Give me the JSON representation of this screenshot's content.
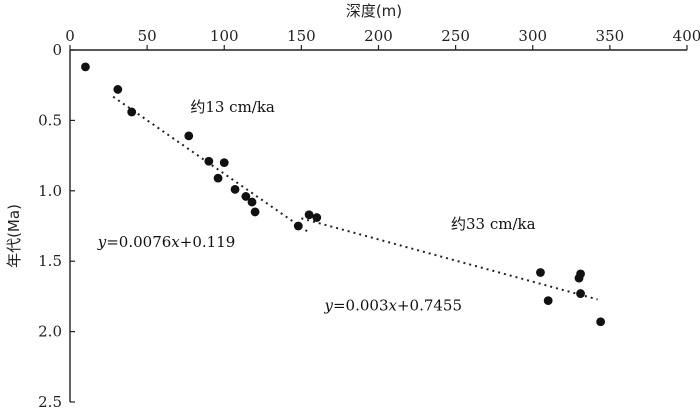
{
  "chart_data": {
    "type": "scatter",
    "title": "",
    "xlabel": "深度(m)",
    "ylabel": "年代(Ma)",
    "xlim": [
      0,
      400
    ],
    "ylim": [
      0,
      2.5
    ],
    "x_axis_position": "top",
    "y_inverted": true,
    "grid": false,
    "x_ticks": [
      {
        "v": 0,
        "label": "0"
      },
      {
        "v": 50,
        "label": "50"
      },
      {
        "v": 100,
        "label": "100"
      },
      {
        "v": 150,
        "label": "150"
      },
      {
        "v": 200,
        "label": "200"
      },
      {
        "v": 250,
        "label": "250"
      },
      {
        "v": 300,
        "label": "300"
      },
      {
        "v": 350,
        "label": "350"
      },
      {
        "v": 400,
        "label": "400"
      }
    ],
    "y_ticks": [
      {
        "v": 0,
        "label": "0"
      },
      {
        "v": 0.5,
        "label": "0.5"
      },
      {
        "v": 1.0,
        "label": "1.0"
      },
      {
        "v": 1.5,
        "label": "1.5"
      },
      {
        "v": 2.0,
        "label": "2.0"
      },
      {
        "v": 2.5,
        "label": "2.5"
      }
    ],
    "points": [
      {
        "x": 10,
        "y": 0.12
      },
      {
        "x": 31,
        "y": 0.28
      },
      {
        "x": 40,
        "y": 0.44
      },
      {
        "x": 77,
        "y": 0.61
      },
      {
        "x": 90,
        "y": 0.79
      },
      {
        "x": 96,
        "y": 0.91
      },
      {
        "x": 100,
        "y": 0.8
      },
      {
        "x": 107,
        "y": 0.99
      },
      {
        "x": 114,
        "y": 1.04
      },
      {
        "x": 118,
        "y": 1.08
      },
      {
        "x": 120,
        "y": 1.15
      },
      {
        "x": 148,
        "y": 1.25
      },
      {
        "x": 155,
        "y": 1.17
      },
      {
        "x": 160,
        "y": 1.19
      },
      {
        "x": 305,
        "y": 1.58
      },
      {
        "x": 310,
        "y": 1.78
      },
      {
        "x": 330,
        "y": 1.62
      },
      {
        "x": 331,
        "y": 1.59
      },
      {
        "x": 331,
        "y": 1.73
      },
      {
        "x": 344,
        "y": 1.93
      }
    ],
    "fits": [
      {
        "x_range": [
          28,
          155
        ],
        "slope": 0.0076,
        "intercept": 0.119
      },
      {
        "x_range": [
          150,
          342
        ],
        "slope": 0.003,
        "intercept": 0.7455
      }
    ],
    "annotations": [
      {
        "id": "rate1",
        "x": 78,
        "y": 0.44,
        "text": "约13 cm/ka"
      },
      {
        "id": "rate2",
        "x": 247,
        "y": 1.27,
        "text": "约33 cm/ka"
      },
      {
        "id": "eq1",
        "x": 18,
        "y": 1.4,
        "text": "y=0.0076x+0.119"
      },
      {
        "id": "eq2",
        "x": 165,
        "y": 1.85,
        "text": "y=0.003x+0.7455"
      }
    ]
  }
}
